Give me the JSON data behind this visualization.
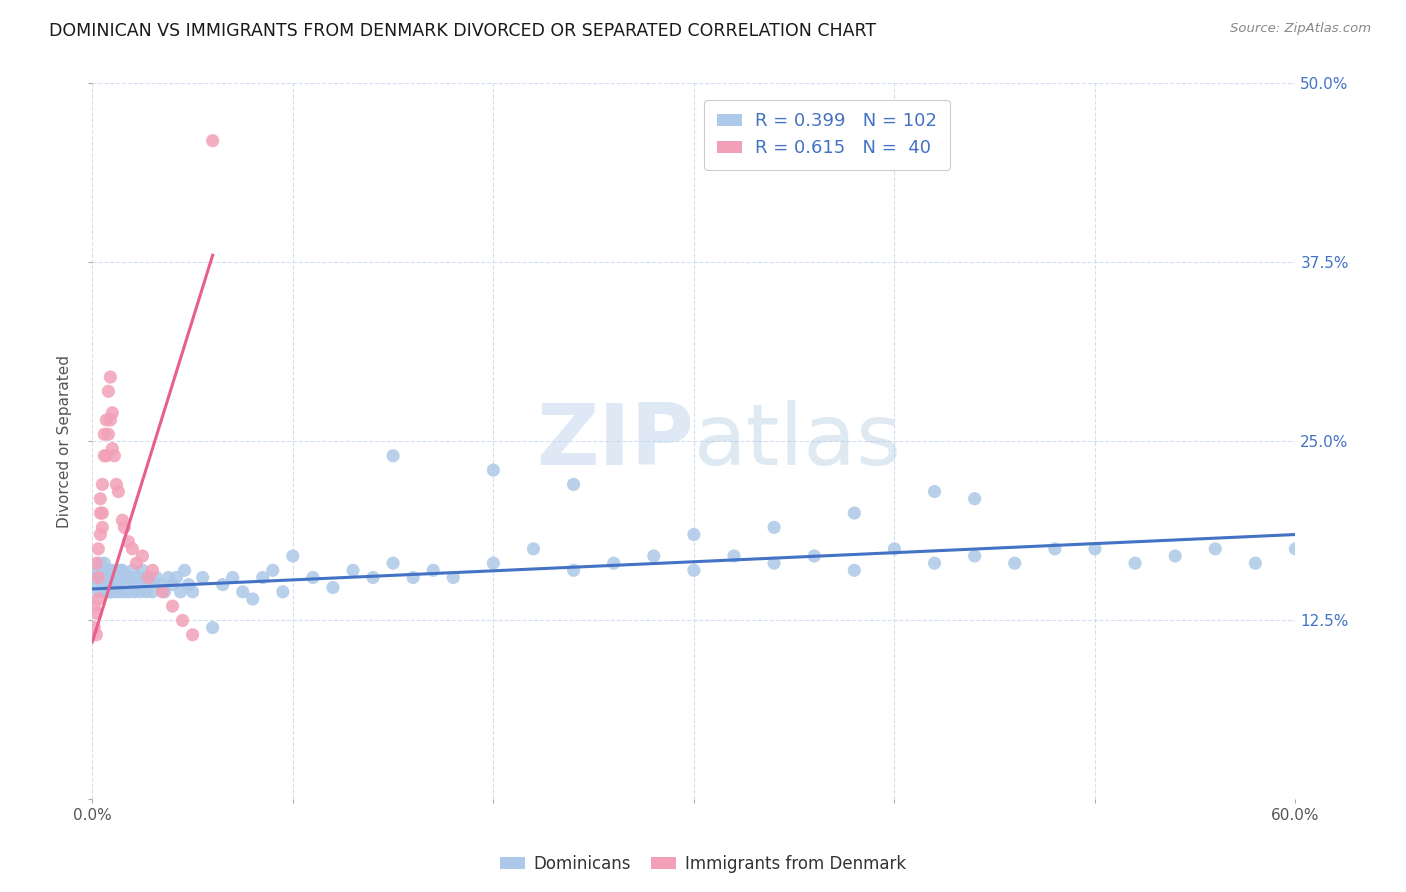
{
  "title": "DOMINICAN VS IMMIGRANTS FROM DENMARK DIVORCED OR SEPARATED CORRELATION CHART",
  "source": "Source: ZipAtlas.com",
  "ylabel": "Divorced or Separated",
  "x_min": 0.0,
  "x_max": 0.6,
  "y_min": 0.0,
  "y_max": 0.5,
  "x_ticks": [
    0.0,
    0.1,
    0.2,
    0.3,
    0.4,
    0.5,
    0.6
  ],
  "x_tick_labels": [
    "0.0%",
    "",
    "",
    "",
    "",
    "",
    "60.0%"
  ],
  "y_ticks": [
    0.0,
    0.125,
    0.25,
    0.375,
    0.5
  ],
  "y_tick_labels": [
    "",
    "12.5%",
    "25.0%",
    "37.5%",
    "50.0%"
  ],
  "label1": "Dominicans",
  "label2": "Immigrants from Denmark",
  "color1": "#adc8e8",
  "color2": "#f2a0b8",
  "line_color1": "#4472c4",
  "line_color2": "#e8608a",
  "background_color": "#ffffff",
  "watermark_zip": "ZIP",
  "watermark_atlas": "atlas",
  "dominicans_x": [
    0.001,
    0.002,
    0.003,
    0.003,
    0.004,
    0.004,
    0.005,
    0.005,
    0.006,
    0.006,
    0.007,
    0.007,
    0.008,
    0.008,
    0.009,
    0.009,
    0.01,
    0.01,
    0.01,
    0.011,
    0.011,
    0.012,
    0.012,
    0.013,
    0.013,
    0.014,
    0.014,
    0.015,
    0.015,
    0.016,
    0.016,
    0.017,
    0.018,
    0.019,
    0.02,
    0.021,
    0.022,
    0.023,
    0.024,
    0.025,
    0.026,
    0.027,
    0.028,
    0.029,
    0.03,
    0.032,
    0.034,
    0.036,
    0.038,
    0.04,
    0.042,
    0.044,
    0.046,
    0.048,
    0.05,
    0.055,
    0.06,
    0.065,
    0.07,
    0.075,
    0.08,
    0.085,
    0.09,
    0.095,
    0.1,
    0.11,
    0.12,
    0.13,
    0.14,
    0.15,
    0.16,
    0.17,
    0.18,
    0.2,
    0.22,
    0.24,
    0.26,
    0.28,
    0.3,
    0.32,
    0.34,
    0.36,
    0.38,
    0.4,
    0.42,
    0.44,
    0.46,
    0.48,
    0.5,
    0.52,
    0.54,
    0.56,
    0.58,
    0.6,
    0.38,
    0.44,
    0.3,
    0.34,
    0.15,
    0.2,
    0.24,
    0.42
  ],
  "dominicans_y": [
    0.155,
    0.15,
    0.16,
    0.145,
    0.155,
    0.165,
    0.15,
    0.16,
    0.145,
    0.165,
    0.15,
    0.155,
    0.145,
    0.16,
    0.15,
    0.145,
    0.155,
    0.16,
    0.145,
    0.155,
    0.15,
    0.16,
    0.145,
    0.155,
    0.15,
    0.16,
    0.145,
    0.155,
    0.16,
    0.145,
    0.155,
    0.15,
    0.145,
    0.155,
    0.16,
    0.145,
    0.15,
    0.155,
    0.145,
    0.16,
    0.155,
    0.145,
    0.15,
    0.155,
    0.145,
    0.155,
    0.15,
    0.145,
    0.155,
    0.15,
    0.155,
    0.145,
    0.16,
    0.15,
    0.145,
    0.155,
    0.12,
    0.15,
    0.155,
    0.145,
    0.14,
    0.155,
    0.16,
    0.145,
    0.17,
    0.155,
    0.148,
    0.16,
    0.155,
    0.165,
    0.155,
    0.16,
    0.155,
    0.165,
    0.175,
    0.16,
    0.165,
    0.17,
    0.16,
    0.17,
    0.165,
    0.17,
    0.16,
    0.175,
    0.165,
    0.17,
    0.165,
    0.175,
    0.175,
    0.165,
    0.17,
    0.175,
    0.165,
    0.175,
    0.2,
    0.21,
    0.185,
    0.19,
    0.24,
    0.23,
    0.22,
    0.215
  ],
  "denmark_x": [
    0.001,
    0.001,
    0.002,
    0.002,
    0.002,
    0.003,
    0.003,
    0.003,
    0.004,
    0.004,
    0.004,
    0.005,
    0.005,
    0.005,
    0.006,
    0.006,
    0.007,
    0.007,
    0.008,
    0.008,
    0.009,
    0.009,
    0.01,
    0.01,
    0.011,
    0.012,
    0.013,
    0.015,
    0.016,
    0.018,
    0.02,
    0.022,
    0.025,
    0.028,
    0.03,
    0.035,
    0.04,
    0.045,
    0.05,
    0.06
  ],
  "denmark_y": [
    0.135,
    0.12,
    0.165,
    0.13,
    0.115,
    0.175,
    0.155,
    0.14,
    0.2,
    0.21,
    0.185,
    0.22,
    0.2,
    0.19,
    0.255,
    0.24,
    0.265,
    0.24,
    0.285,
    0.255,
    0.295,
    0.265,
    0.27,
    0.245,
    0.24,
    0.22,
    0.215,
    0.195,
    0.19,
    0.18,
    0.175,
    0.165,
    0.17,
    0.155,
    0.16,
    0.145,
    0.135,
    0.125,
    0.115,
    0.46
  ],
  "dom_line_x": [
    0.0,
    0.6
  ],
  "dom_line_y": [
    0.147,
    0.185
  ],
  "den_line_x": [
    0.0,
    0.06
  ],
  "den_line_y": [
    0.11,
    0.38
  ]
}
